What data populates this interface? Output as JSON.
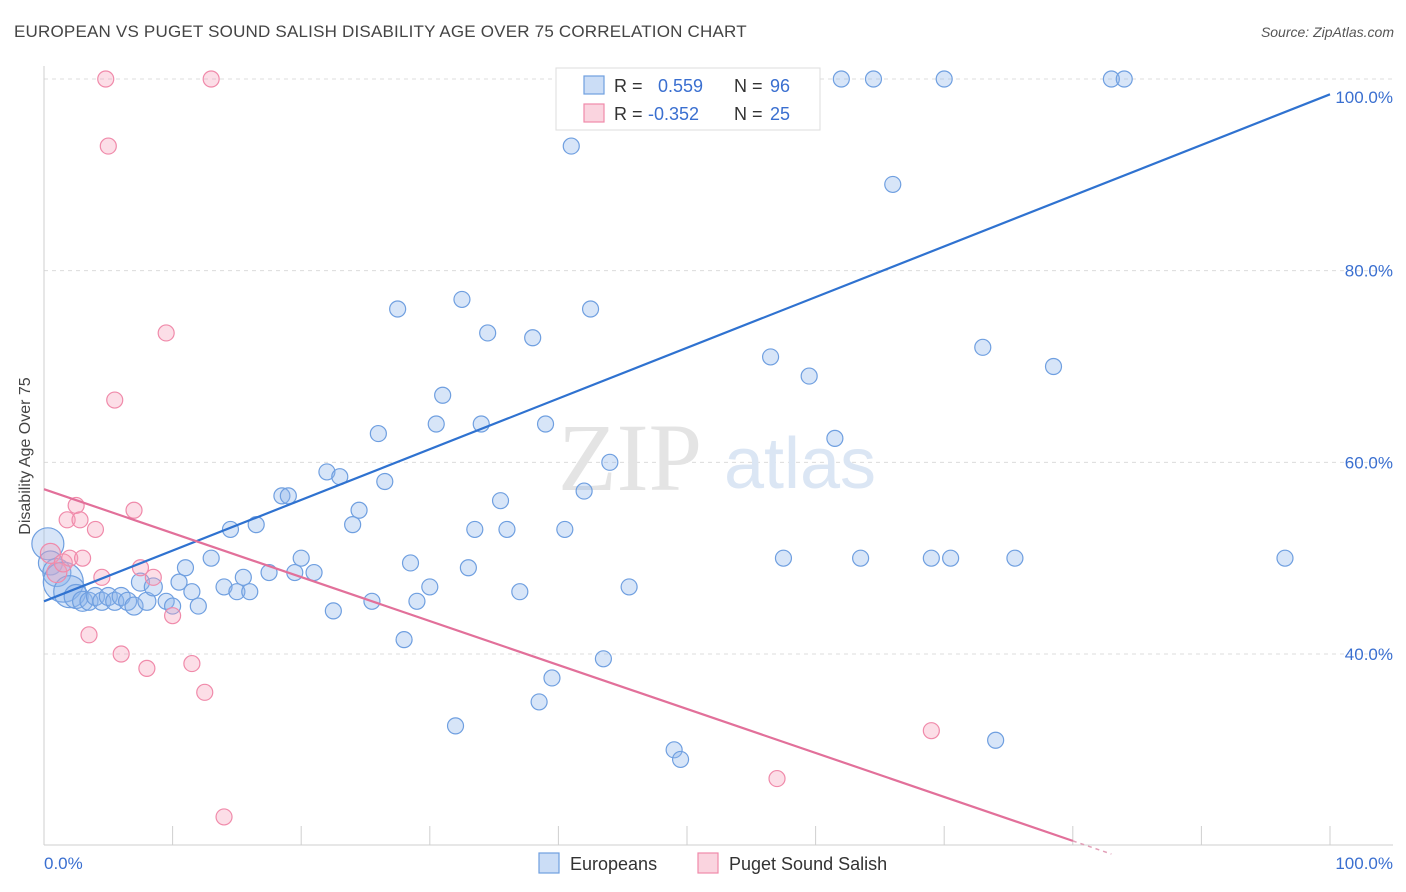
{
  "title": "EUROPEAN VS PUGET SOUND SALISH DISABILITY AGE OVER 75 CORRELATION CHART",
  "source": "Source: ZipAtlas.com",
  "watermark": {
    "zip": "ZIP",
    "atlas": "atlas"
  },
  "legend_box": {
    "rows": [
      {
        "r_label": "R =",
        "r_value": "0.559",
        "n_label": "N =",
        "n_value": "96",
        "color": "#6f9fe0"
      },
      {
        "r_label": "R =",
        "r_value": "-0.352",
        "n_label": "N =",
        "n_value": "25",
        "color": "#f08aaa"
      }
    ]
  },
  "bottom_legend": [
    "Europeans",
    "Puget Sound Salish"
  ],
  "chart_data": {
    "type": "scatter",
    "title": "EUROPEAN VS PUGET SOUND SALISH DISABILITY AGE OVER 75 CORRELATION CHART",
    "xlabel": "",
    "ylabel": "Disability Age Over 75",
    "xlim": [
      0,
      100
    ],
    "ylim": [
      18,
      100
    ],
    "x_tick_labels": [
      "0.0%",
      "100.0%"
    ],
    "y_ticks": [
      40,
      60,
      80,
      100
    ],
    "y_tick_labels": [
      "40.0%",
      "60.0%",
      "80.0%",
      "100.0%"
    ],
    "grid": true,
    "legend_position": "bottom",
    "series": [
      {
        "name": "Europeans",
        "color": "#6f9fe0",
        "fill": "rgba(140,180,235,0.35)",
        "trend": {
          "x": [
            0,
            100
          ],
          "y": [
            45.5,
            98.4
          ]
        },
        "points": [
          [
            0.3,
            51.5,
            16
          ],
          [
            0.5,
            49.5,
            12
          ],
          [
            1.0,
            48.5,
            14
          ],
          [
            1.5,
            47.5,
            20
          ],
          [
            2.0,
            46.5,
            16
          ],
          [
            2.5,
            46.0,
            12
          ],
          [
            3.0,
            45.5,
            10
          ],
          [
            3.5,
            45.5,
            9
          ],
          [
            4.0,
            46.0,
            9
          ],
          [
            4.5,
            45.5,
            9
          ],
          [
            5.0,
            46.0,
            9
          ],
          [
            5.5,
            45.5,
            9
          ],
          [
            6.0,
            46.0,
            9
          ],
          [
            6.5,
            45.5,
            9
          ],
          [
            7.0,
            45.0,
            9
          ],
          [
            7.5,
            47.5,
            9
          ],
          [
            8.0,
            45.5,
            9
          ],
          [
            8.5,
            47.0,
            9
          ],
          [
            9.5,
            45.5,
            8
          ],
          [
            10.0,
            45.0,
            8
          ],
          [
            10.5,
            47.5,
            8
          ],
          [
            11.0,
            49.0,
            8
          ],
          [
            11.5,
            46.5,
            8
          ],
          [
            12.0,
            45.0,
            8
          ],
          [
            13.0,
            50.0,
            8
          ],
          [
            14.0,
            47.0,
            8
          ],
          [
            14.5,
            53.0,
            8
          ],
          [
            15.0,
            46.5,
            8
          ],
          [
            15.5,
            48.0,
            8
          ],
          [
            16.0,
            46.5,
            8
          ],
          [
            16.5,
            53.5,
            8
          ],
          [
            17.5,
            48.5,
            8
          ],
          [
            18.5,
            56.5,
            8
          ],
          [
            19.0,
            56.5,
            8
          ],
          [
            19.5,
            48.5,
            8
          ],
          [
            20.0,
            50.0,
            8
          ],
          [
            21.0,
            48.5,
            8
          ],
          [
            22.0,
            59.0,
            8
          ],
          [
            22.5,
            44.5,
            8
          ],
          [
            23.0,
            58.5,
            8
          ],
          [
            24.0,
            53.5,
            8
          ],
          [
            24.5,
            55.0,
            8
          ],
          [
            25.5,
            45.5,
            8
          ],
          [
            26.0,
            63.0,
            8
          ],
          [
            26.5,
            58.0,
            8
          ],
          [
            27.5,
            76.0,
            8
          ],
          [
            28.0,
            41.5,
            8
          ],
          [
            28.5,
            49.5,
            8
          ],
          [
            29.0,
            45.5,
            8
          ],
          [
            30.0,
            47.0,
            8
          ],
          [
            30.5,
            64.0,
            8
          ],
          [
            31.0,
            67.0,
            8
          ],
          [
            32.0,
            32.5,
            8
          ],
          [
            32.5,
            77.0,
            8
          ],
          [
            33.0,
            49.0,
            8
          ],
          [
            33.5,
            53.0,
            8
          ],
          [
            34.0,
            64.0,
            8
          ],
          [
            34.5,
            73.5,
            8
          ],
          [
            35.5,
            56.0,
            8
          ],
          [
            36.0,
            53.0,
            8
          ],
          [
            37.0,
            46.5,
            8
          ],
          [
            38.0,
            73.0,
            8
          ],
          [
            38.5,
            35.0,
            8
          ],
          [
            39.0,
            64.0,
            8
          ],
          [
            39.5,
            37.5,
            8
          ],
          [
            40.5,
            53.0,
            8
          ],
          [
            41.0,
            93.0,
            8
          ],
          [
            42.0,
            57.0,
            8
          ],
          [
            42.5,
            76.0,
            8
          ],
          [
            43.5,
            39.5,
            8
          ],
          [
            44.0,
            60.0,
            8
          ],
          [
            45.5,
            47.0,
            8
          ],
          [
            47.0,
            100.0,
            8
          ],
          [
            47.5,
            100.0,
            8
          ],
          [
            48.5,
            100.0,
            8
          ],
          [
            49.0,
            30.0,
            8
          ],
          [
            49.5,
            29.0,
            8
          ],
          [
            51.5,
            100.0,
            8
          ],
          [
            52.0,
            100.0,
            8
          ],
          [
            56.5,
            71.0,
            8
          ],
          [
            57.5,
            50.0,
            8
          ],
          [
            59.5,
            69.0,
            8
          ],
          [
            61.5,
            62.5,
            8
          ],
          [
            62.0,
            100.0,
            8
          ],
          [
            63.5,
            50.0,
            8
          ],
          [
            64.5,
            100.0,
            8
          ],
          [
            66.0,
            89.0,
            8
          ],
          [
            69.0,
            50.0,
            8
          ],
          [
            70.0,
            100.0,
            8
          ],
          [
            70.5,
            50.0,
            8
          ],
          [
            73.0,
            72.0,
            8
          ],
          [
            74.0,
            31.0,
            8
          ],
          [
            75.5,
            50.0,
            8
          ],
          [
            78.5,
            70.0,
            8
          ],
          [
            83.0,
            100.0,
            8
          ],
          [
            84.0,
            100.0,
            8
          ],
          [
            96.5,
            50.0,
            8
          ]
        ]
      },
      {
        "name": "Puget Sound Salish",
        "color": "#f08aaa",
        "fill": "rgba(245,160,185,0.35)",
        "trend": {
          "x": [
            0,
            80
          ],
          "y": [
            57.2,
            20.5
          ]
        },
        "points": [
          [
            0.5,
            50.5,
            10
          ],
          [
            1.0,
            48.5,
            10
          ],
          [
            1.5,
            49.5,
            9
          ],
          [
            1.8,
            54.0,
            8
          ],
          [
            2.0,
            50.0,
            8
          ],
          [
            2.5,
            55.5,
            8
          ],
          [
            2.8,
            54.0,
            8
          ],
          [
            3.0,
            50.0,
            8
          ],
          [
            3.5,
            42.0,
            8
          ],
          [
            4.0,
            53.0,
            8
          ],
          [
            4.5,
            48.0,
            8
          ],
          [
            4.8,
            100.0,
            8
          ],
          [
            5.0,
            93.0,
            8
          ],
          [
            5.5,
            66.5,
            8
          ],
          [
            6.0,
            40.0,
            8
          ],
          [
            7.0,
            55.0,
            8
          ],
          [
            7.5,
            49.0,
            8
          ],
          [
            8.0,
            38.5,
            8
          ],
          [
            8.5,
            48.0,
            8
          ],
          [
            9.5,
            73.5,
            8
          ],
          [
            10.0,
            44.0,
            8
          ],
          [
            11.5,
            39.0,
            8
          ],
          [
            12.5,
            36.0,
            8
          ],
          [
            13.0,
            100.0,
            8
          ],
          [
            14.0,
            23.0,
            8
          ],
          [
            57.0,
            27.0,
            8
          ],
          [
            69.0,
            32.0,
            8
          ]
        ]
      }
    ]
  }
}
